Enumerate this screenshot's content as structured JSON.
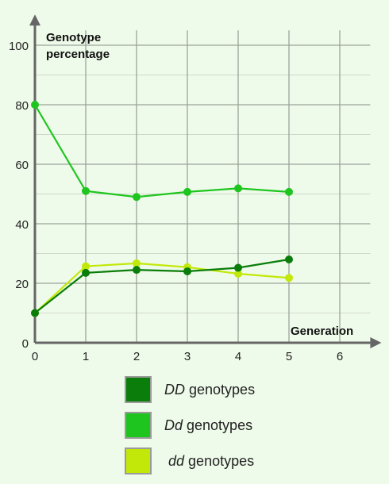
{
  "chart_data": {
    "type": "line",
    "ylabel": "Genotype percentage",
    "xlabel": "Generation",
    "xlim": [
      0,
      6.6
    ],
    "ylim": [
      0,
      105
    ],
    "x_ticks": [
      0,
      1,
      2,
      3,
      4,
      5,
      6
    ],
    "y_ticks": [
      0,
      20,
      40,
      60,
      80,
      100
    ],
    "grid": true,
    "legend_position": "bottom",
    "series": [
      {
        "name": "DD genotypes",
        "italic": "DD",
        "rest": " genotypes",
        "color": "#0a7d0a",
        "x": [
          0,
          1,
          2,
          3,
          4,
          5
        ],
        "values": [
          10,
          23.5,
          24.5,
          24,
          25.2,
          28
        ]
      },
      {
        "name": "Dd genotypes",
        "italic": "Dd",
        "rest": " genotypes",
        "color": "#1ec51e",
        "x": [
          0,
          1,
          2,
          3,
          4,
          5
        ],
        "values": [
          80,
          51,
          49,
          50.7,
          51.9,
          50.7
        ]
      },
      {
        "name": "dd genotypes",
        "italic": "dd",
        "rest": " genotypes",
        "color": "#c2e80a",
        "x": [
          0,
          1,
          2,
          3,
          4,
          5
        ],
        "values": [
          10,
          25.7,
          26.7,
          25.4,
          23.2,
          21.8
        ]
      }
    ]
  }
}
